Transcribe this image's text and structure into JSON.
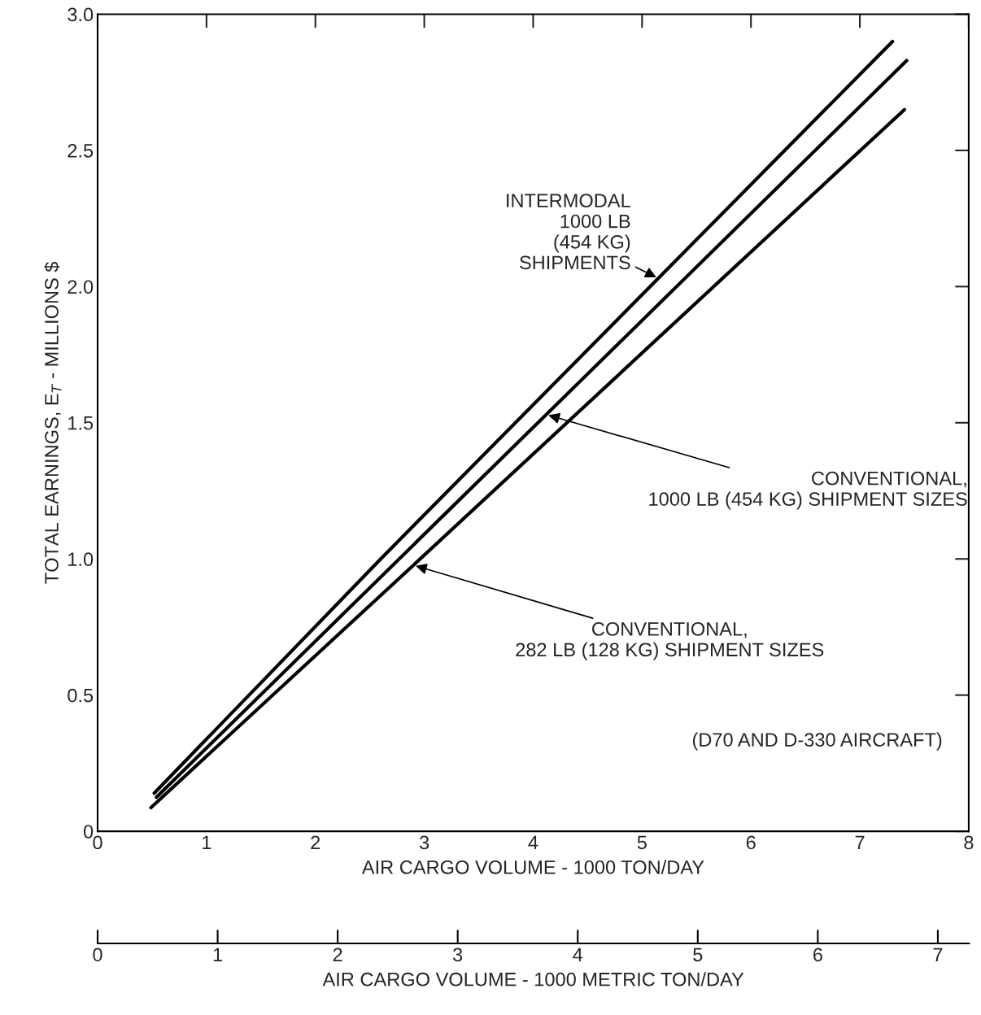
{
  "chart_data": {
    "type": "line",
    "xlabel": "AIR CARGO VOLUME - 1000 TON/DAY",
    "ylabel": "TOTAL EARNINGS, E$_{T}$ - MILLIONS $",
    "x2label": "AIR CARGO VOLUME - 1000 METRIC TON/DAY",
    "xlim": [
      0,
      8
    ],
    "xticks": [
      0,
      1,
      2,
      3,
      4,
      5,
      6,
      7,
      8
    ],
    "ylim": [
      0,
      3.0
    ],
    "yticks": [
      {
        "value": 0,
        "label": "0"
      },
      0.5,
      {
        "value": 1,
        "label": "1.0"
      },
      1.5,
      {
        "value": 2,
        "label": "2.0"
      },
      2.5,
      {
        "value": 3,
        "label": "3.0"
      }
    ],
    "x2lim": [
      0,
      7.26
    ],
    "x2ticks": [
      0,
      1,
      2,
      3,
      4,
      5,
      6,
      7
    ],
    "grid": false,
    "legend": false,
    "marker": "none",
    "line_style": "solid",
    "series": [
      {
        "color": "#000000",
        "x": [
          0.52,
          2.6,
          7.3
        ],
        "values": [
          0.14,
          1.0,
          2.9
        ]
      },
      {
        "color": "#000000",
        "x": [
          0.54,
          4.12,
          7.43
        ],
        "values": [
          0.125,
          1.53,
          2.83
        ]
      },
      {
        "color": "#000000",
        "x": [
          0.49,
          2.9,
          7.41
        ],
        "values": [
          0.087,
          0.977,
          2.65
        ]
      }
    ],
    "annotations": [
      {
        "text": "INTERMODAL\n1000 LB\n(454 KG)\nSHIPMENTS",
        "x": 5.15,
        "y": 2.03
      },
      {
        "text": "CONVENTIONAL,\n1000 LB (454 KG) SHIPMENT SIZES",
        "x": 4.12,
        "y": 1.53
      },
      {
        "text": "CONVENTIONAL,\n282 LB (128 KG) SHIPMENT SIZES",
        "x": 2.9,
        "y": 0.977
      },
      "(D70 AND D-330 AIRCRAFT)"
    ]
  }
}
